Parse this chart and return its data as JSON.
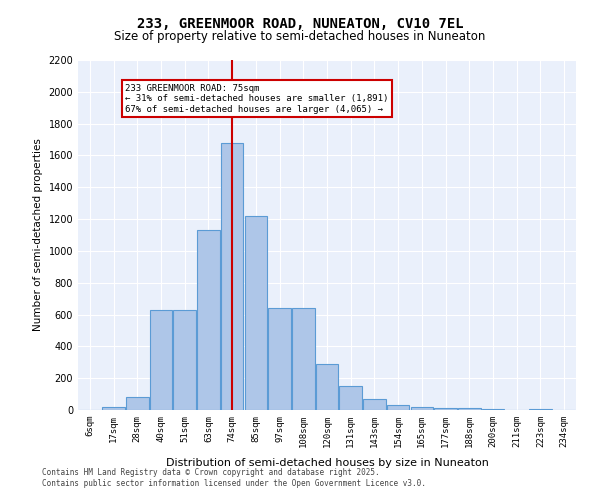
{
  "title_line1": "233, GREENMOOR ROAD, NUNEATON, CV10 7EL",
  "title_line2": "Size of property relative to semi-detached houses in Nuneaton",
  "xlabel": "Distribution of semi-detached houses by size in Nuneaton",
  "ylabel": "Number of semi-detached properties",
  "categories": [
    "6sqm",
    "17sqm",
    "28sqm",
    "40sqm",
    "51sqm",
    "63sqm",
    "74sqm",
    "85sqm",
    "97sqm",
    "108sqm",
    "120sqm",
    "131sqm",
    "143sqm",
    "154sqm",
    "165sqm",
    "177sqm",
    "188sqm",
    "200sqm",
    "211sqm",
    "223sqm",
    "234sqm"
  ],
  "values": [
    0,
    20,
    80,
    630,
    630,
    1130,
    1680,
    1220,
    640,
    640,
    290,
    150,
    70,
    30,
    20,
    10,
    10,
    5,
    0,
    5,
    0
  ],
  "bar_color": "#aec6e8",
  "bar_edge_color": "#5b9bd5",
  "background_color": "#eaf0fb",
  "grid_color": "#ffffff",
  "vline_x": 6,
  "vline_color": "#cc0000",
  "annotation_text": "233 GREENMOOR ROAD: 75sqm\n← 31% of semi-detached houses are smaller (1,891)\n67% of semi-detached houses are larger (4,065) →",
  "annotation_box_color": "#ffffff",
  "annotation_box_edge": "#cc0000",
  "ylim": [
    0,
    2200
  ],
  "yticks": [
    0,
    200,
    400,
    600,
    800,
    1000,
    1200,
    1400,
    1600,
    1800,
    2000,
    2200
  ],
  "footer_line1": "Contains HM Land Registry data © Crown copyright and database right 2025.",
  "footer_line2": "Contains public sector information licensed under the Open Government Licence v3.0."
}
